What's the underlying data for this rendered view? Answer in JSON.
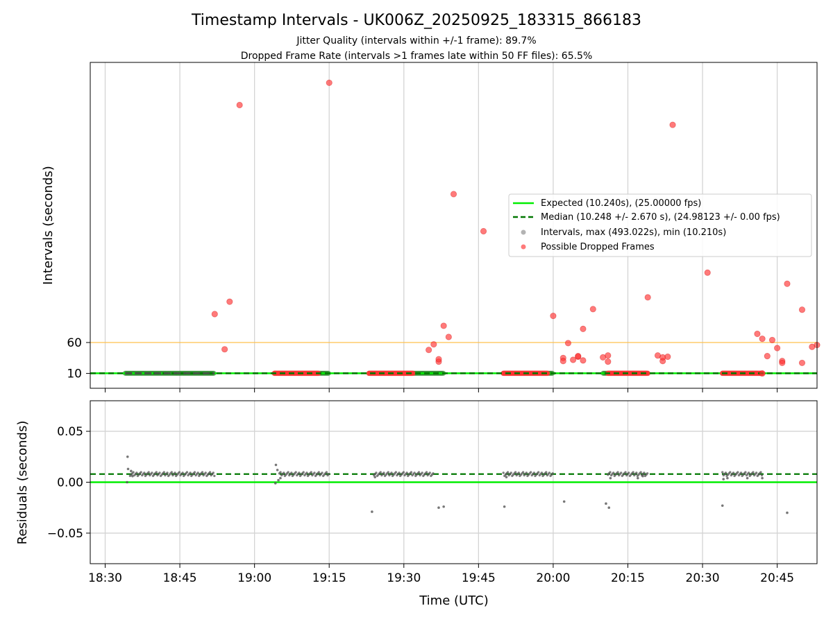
{
  "chart_data": {
    "type": "scatter",
    "title": "Timestamp Intervals - UK006Z_20250925_183315_866183",
    "subtitle_lines": [
      "Jitter Quality (intervals within +/-1 frame): 89.7%",
      "Dropped Frame Rate (intervals >1 frames late within 50 FF files): 65.5%"
    ],
    "xlabel": "Time (UTC)",
    "x_ticks": [
      "18:30",
      "18:45",
      "19:00",
      "19:15",
      "19:30",
      "19:45",
      "20:00",
      "20:15",
      "20:30",
      "20:45"
    ],
    "x_range": [
      "18:27",
      "20:53"
    ],
    "grid_vertical": true,
    "top_panel": {
      "ylabel": "Intervals (seconds)",
      "y_ticks": [
        10,
        60
      ],
      "ylim": [
        -14,
        513
      ],
      "reference_line_value": 60,
      "expected_value": 10.24,
      "median_value": 10.248,
      "legend_position": "center-right",
      "legend": [
        "Expected (10.240s), (25.00000 fps)",
        "Median (10.248 +/- 2.670 s), (24.98123 +/- 0.00 fps)",
        "Intervals, max (493.022s), min (10.210s)",
        "Possible Dropped Frames"
      ],
      "normal_interval_segments": [
        {
          "start": "18:34",
          "end": "18:52",
          "value": 10.24
        },
        {
          "start": "19:04",
          "end": "19:15",
          "value": 10.24
        },
        {
          "start": "19:23",
          "end": "19:38",
          "value": 10.24
        },
        {
          "start": "19:50",
          "end": "20:00",
          "value": 10.24
        },
        {
          "start": "20:10",
          "end": "20:19",
          "value": 10.24
        },
        {
          "start": "20:34",
          "end": "20:41",
          "value": 10.24
        }
      ],
      "dropped_frame_segments": [
        {
          "start": "19:04",
          "end": "19:13",
          "value": 10.24
        },
        {
          "start": "19:23",
          "end": "19:32",
          "value": 10.24
        },
        {
          "start": "19:50",
          "end": "19:59",
          "value": 10.24
        },
        {
          "start": "20:11",
          "end": "20:19",
          "value": 10.24
        },
        {
          "start": "20:34",
          "end": "20:42",
          "value": 10.24
        }
      ],
      "dropped_frame_points": [
        {
          "x": "18:52",
          "y": 106
        },
        {
          "x": "18:54",
          "y": 49
        },
        {
          "x": "18:55",
          "y": 126
        },
        {
          "x": "18:57",
          "y": 444
        },
        {
          "x": "19:15",
          "y": 480
        },
        {
          "x": "19:35",
          "y": 48
        },
        {
          "x": "19:36",
          "y": 57
        },
        {
          "x": "19:37",
          "y": 29
        },
        {
          "x": "19:37",
          "y": 33
        },
        {
          "x": "19:38",
          "y": 87
        },
        {
          "x": "19:39",
          "y": 69
        },
        {
          "x": "19:40",
          "y": 300
        },
        {
          "x": "19:46",
          "y": 240
        },
        {
          "x": "20:00",
          "y": 103
        },
        {
          "x": "20:02",
          "y": 35
        },
        {
          "x": "20:02",
          "y": 30
        },
        {
          "x": "20:03",
          "y": 59
        },
        {
          "x": "20:04",
          "y": 32
        },
        {
          "x": "20:05",
          "y": 37
        },
        {
          "x": "20:05",
          "y": 38
        },
        {
          "x": "20:06",
          "y": 31
        },
        {
          "x": "20:06",
          "y": 82
        },
        {
          "x": "20:08",
          "y": 114
        },
        {
          "x": "20:10",
          "y": 36
        },
        {
          "x": "20:11",
          "y": 39
        },
        {
          "x": "20:11",
          "y": 29
        },
        {
          "x": "20:19",
          "y": 133
        },
        {
          "x": "20:21",
          "y": 39
        },
        {
          "x": "20:22",
          "y": 30
        },
        {
          "x": "20:22",
          "y": 36
        },
        {
          "x": "20:23",
          "y": 37
        },
        {
          "x": "20:24",
          "y": 412
        },
        {
          "x": "20:31",
          "y": 173
        },
        {
          "x": "20:41",
          "y": 74
        },
        {
          "x": "20:42",
          "y": 66
        },
        {
          "x": "20:42",
          "y": 10
        },
        {
          "x": "20:43",
          "y": 38
        },
        {
          "x": "20:44",
          "y": 64
        },
        {
          "x": "20:45",
          "y": 51
        },
        {
          "x": "20:46",
          "y": 30
        },
        {
          "x": "20:46",
          "y": 27
        },
        {
          "x": "20:47",
          "y": 155
        },
        {
          "x": "20:50",
          "y": 27
        },
        {
          "x": "20:50",
          "y": 113
        },
        {
          "x": "20:52",
          "y": 53
        },
        {
          "x": "20:53",
          "y": 56
        }
      ]
    },
    "bottom_panel": {
      "ylabel": "Residuals (seconds)",
      "y_ticks": [
        "0.05",
        "0.00",
        "−0.05"
      ],
      "y_tick_values": [
        0.05,
        0.0,
        -0.05
      ],
      "ylim": [
        -0.08,
        0.08
      ],
      "zero_line_value": 0.0,
      "median_offset": 0.008,
      "grid_horizontal": true,
      "residual_clusters": [
        {
          "start": "18:35",
          "end": "18:52",
          "value": 0.008
        },
        {
          "start": "19:05",
          "end": "19:15",
          "value": 0.008
        },
        {
          "start": "19:24",
          "end": "19:36",
          "value": 0.008
        },
        {
          "start": "19:50",
          "end": "20:00",
          "value": 0.008
        },
        {
          "start": "20:11",
          "end": "20:19",
          "value": 0.008
        },
        {
          "start": "20:34",
          "end": "20:42",
          "value": 0.008
        }
      ],
      "residual_points": [
        {
          "x": "18:34.5",
          "y": 0.025
        },
        {
          "x": "18:34.6",
          "y": 0.013
        },
        {
          "x": "18:34.4",
          "y": 0.0
        },
        {
          "x": "18:35.2",
          "y": 0.011
        },
        {
          "x": "18:35.5",
          "y": 0.006
        },
        {
          "x": "19:04.3",
          "y": 0.017
        },
        {
          "x": "19:04.6",
          "y": 0.012
        },
        {
          "x": "19:04.8",
          "y": 0.002
        },
        {
          "x": "19:04.2",
          "y": -0.001
        },
        {
          "x": "19:05.2",
          "y": 0.004
        },
        {
          "x": "19:23.6",
          "y": -0.029
        },
        {
          "x": "19:24.2",
          "y": 0.005
        },
        {
          "x": "19:37",
          "y": -0.025
        },
        {
          "x": "19:38",
          "y": -0.024
        },
        {
          "x": "19:50.2",
          "y": -0.024
        },
        {
          "x": "19:50.6",
          "y": 0.005
        },
        {
          "x": "20:02.2",
          "y": -0.019
        },
        {
          "x": "20:10.6",
          "y": -0.021
        },
        {
          "x": "20:11.2",
          "y": -0.025
        },
        {
          "x": "20:11.5",
          "y": 0.004
        },
        {
          "x": "20:17",
          "y": 0.004
        },
        {
          "x": "20:18",
          "y": 0.006
        },
        {
          "x": "20:34",
          "y": -0.023
        },
        {
          "x": "20:34.2",
          "y": 0.003
        },
        {
          "x": "20:35",
          "y": 0.004
        },
        {
          "x": "20:39",
          "y": 0.004
        },
        {
          "x": "20:42",
          "y": 0.004
        },
        {
          "x": "20:47",
          "y": -0.03
        }
      ]
    },
    "colors": {
      "expected": "#00ee00",
      "median": "#007700",
      "intervals": "#808080",
      "dropped": "#ff3333",
      "reference": "#ffc04d",
      "grid": "#d4d4d4"
    }
  }
}
